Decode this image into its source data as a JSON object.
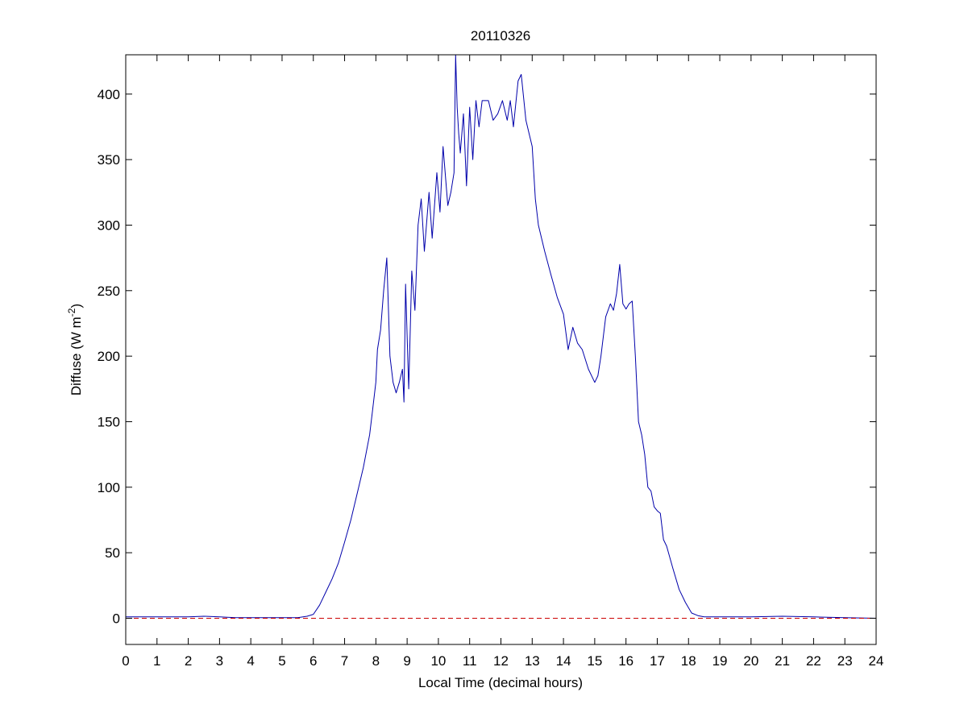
{
  "chart_data": {
    "type": "line",
    "title": "20110326",
    "xlabel": "Local Time (decimal hours)",
    "ylabel": {
      "main": "Diffuse (W m",
      "superscript": "-2",
      "close": ")"
    },
    "xlim": [
      0,
      24
    ],
    "ylim": [
      -20,
      430
    ],
    "xticks": [
      0,
      1,
      2,
      3,
      4,
      5,
      6,
      7,
      8,
      9,
      10,
      11,
      12,
      13,
      14,
      15,
      16,
      17,
      18,
      19,
      20,
      21,
      22,
      23,
      24
    ],
    "yticks": [
      0,
      50,
      100,
      150,
      200,
      250,
      300,
      350,
      400
    ],
    "grid": false,
    "colors": {
      "series": "#0000aa",
      "baseline": "#cc0000"
    },
    "series": [
      {
        "color": "#0000aa",
        "style": "solid",
        "x": [
          0,
          1,
          2,
          2.5,
          3,
          3.5,
          4,
          4.5,
          5,
          5.5,
          5.8,
          6.0,
          6.2,
          6.4,
          6.6,
          6.8,
          7.0,
          7.2,
          7.4,
          7.6,
          7.8,
          7.9,
          8.0,
          8.05,
          8.15,
          8.25,
          8.35,
          8.45,
          8.55,
          8.65,
          8.75,
          8.85,
          8.9,
          8.95,
          9.05,
          9.15,
          9.25,
          9.35,
          9.45,
          9.55,
          9.7,
          9.8,
          9.95,
          10.05,
          10.15,
          10.3,
          10.4,
          10.5,
          10.55,
          10.6,
          10.65,
          10.7,
          10.8,
          10.9,
          11.0,
          11.1,
          11.2,
          11.3,
          11.4,
          11.6,
          11.75,
          11.9,
          12.05,
          12.2,
          12.3,
          12.4,
          12.55,
          12.65,
          12.8,
          12.9,
          13.0,
          13.1,
          13.2,
          13.4,
          13.6,
          13.8,
          14.0,
          14.15,
          14.3,
          14.45,
          14.6,
          14.8,
          15.0,
          15.1,
          15.2,
          15.35,
          15.5,
          15.6,
          15.7,
          15.8,
          15.9,
          16.0,
          16.1,
          16.2,
          16.3,
          16.4,
          16.5,
          16.6,
          16.7,
          16.8,
          16.9,
          17.0,
          17.1,
          17.2,
          17.3,
          17.5,
          17.7,
          17.9,
          18.1,
          18.3,
          18.5,
          18.6,
          18.7,
          18.9,
          19.5,
          20.0,
          21.0,
          22.0,
          23.0,
          24.0
        ],
        "y": [
          1,
          1,
          1,
          1.5,
          1,
          0.5,
          0.5,
          0.5,
          0.5,
          0.5,
          1.5,
          3,
          10,
          20,
          30,
          42,
          58,
          75,
          95,
          115,
          140,
          160,
          180,
          205,
          220,
          250,
          275,
          200,
          180,
          172,
          180,
          190,
          165,
          255,
          175,
          265,
          235,
          300,
          320,
          280,
          325,
          290,
          340,
          310,
          360,
          315,
          325,
          340,
          430,
          390,
          370,
          355,
          385,
          330,
          390,
          350,
          395,
          375,
          395,
          395,
          380,
          385,
          395,
          380,
          395,
          375,
          410,
          415,
          380,
          370,
          360,
          320,
          300,
          280,
          262,
          245,
          232,
          205,
          222,
          210,
          205,
          190,
          180,
          185,
          200,
          230,
          240,
          235,
          248,
          270,
          240,
          236,
          240,
          242,
          200,
          150,
          140,
          125,
          100,
          97,
          85,
          82,
          80,
          60,
          55,
          38,
          22,
          12,
          4,
          2,
          1,
          1,
          1,
          1,
          1,
          1,
          1.5,
          1,
          0.5,
          0
        ]
      },
      {
        "color": "#cc0000",
        "style": "dashed",
        "x": [
          0,
          24
        ],
        "y": [
          0,
          0
        ]
      }
    ]
  }
}
